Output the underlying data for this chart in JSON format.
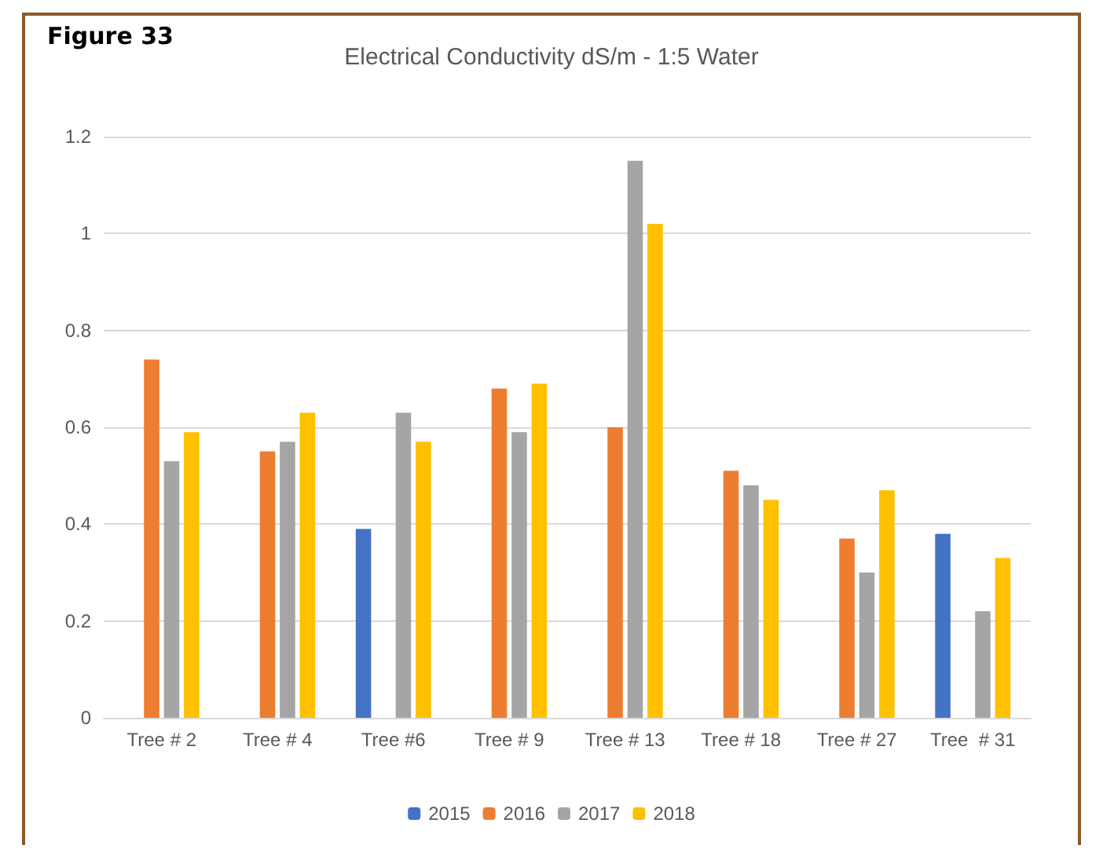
{
  "chart_data": {
    "type": "bar",
    "title": "Electrical Conductivity dS/m - 1:5 Water",
    "annotations": [
      "Figure 33"
    ],
    "categories": [
      "Tree # 2",
      "Tree # 4",
      "Tree #6",
      "Tree # 9",
      "Tree # 13",
      "Tree # 18",
      "Tree # 27",
      "Tree  # 31"
    ],
    "series": [
      {
        "name": "2015",
        "color": "#4472c4",
        "values": [
          null,
          null,
          0.39,
          null,
          null,
          null,
          null,
          0.38
        ]
      },
      {
        "name": "2016",
        "color": "#ed7d31",
        "values": [
          0.74,
          0.55,
          null,
          0.68,
          0.6,
          0.51,
          0.37,
          null
        ]
      },
      {
        "name": "2017",
        "color": "#a5a5a5",
        "values": [
          0.53,
          0.57,
          0.63,
          0.59,
          1.15,
          0.48,
          0.3,
          0.22
        ]
      },
      {
        "name": "2018",
        "color": "#ffc000",
        "values": [
          0.59,
          0.63,
          0.57,
          0.69,
          1.02,
          0.45,
          0.47,
          0.33
        ]
      }
    ],
    "ylim": [
      0,
      1.2
    ],
    "yticks": [
      0,
      0.2,
      0.4,
      0.6,
      0.8,
      1,
      1.2
    ],
    "grid": "y",
    "legend": "bottom"
  }
}
